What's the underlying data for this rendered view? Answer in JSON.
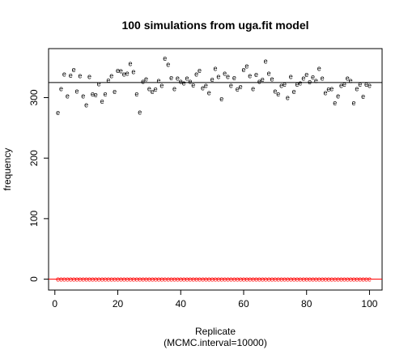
{
  "chart_data": {
    "type": "scatter",
    "title": "100 simulations from uga.fit model",
    "xlabel": "Replicate",
    "xlabel_sub": "(MCMC.interval=10000)",
    "ylabel": "frequency",
    "xlim": [
      -2,
      104
    ],
    "ylim": [
      -18,
      381
    ],
    "x_ticks": [
      0,
      20,
      40,
      60,
      80,
      100
    ],
    "y_ticks": [
      0,
      100,
      200,
      300
    ],
    "point_marker": "e",
    "reference_line": {
      "y": 325,
      "color": "#000000"
    },
    "baseline": {
      "y": 0,
      "color": "#ff0000",
      "marker": "e"
    },
    "colors": {
      "points": "#000000",
      "baseline": "#ff0000"
    },
    "series": [
      {
        "values": [
          275,
          315,
          339,
          303,
          337,
          346,
          311,
          336,
          303,
          288,
          335,
          306,
          305,
          323,
          294,
          306,
          329,
          336,
          310,
          345,
          344,
          339,
          340,
          356,
          343,
          306,
          276,
          327,
          331,
          315,
          310,
          314,
          328,
          320,
          365,
          355,
          333,
          315,
          332,
          327,
          324,
          332,
          327,
          321,
          339,
          345,
          316,
          320,
          308,
          330,
          348,
          335,
          298,
          340,
          335,
          320,
          333,
          314,
          318,
          346,
          352,
          336,
          315,
          338,
          327,
          330,
          360,
          340,
          331,
          311,
          306,
          320,
          322,
          300,
          335,
          310,
          322,
          324,
          332,
          338,
          326,
          334,
          328,
          348,
          332,
          308,
          314,
          315,
          291,
          303,
          320,
          322,
          332,
          328,
          291,
          315,
          322,
          302,
          322,
          320
        ]
      },
      {
        "values": [
          0,
          0,
          0,
          0,
          0,
          0,
          0,
          0,
          0,
          0,
          0,
          0,
          0,
          0,
          0,
          0,
          0,
          0,
          0,
          0,
          0,
          0,
          0,
          0,
          0,
          0,
          0,
          0,
          0,
          0,
          0,
          0,
          0,
          0,
          0,
          0,
          0,
          0,
          0,
          0,
          0,
          0,
          0,
          0,
          0,
          0,
          0,
          0,
          0,
          0,
          0,
          0,
          0,
          0,
          0,
          0,
          0,
          0,
          0,
          0,
          0,
          0,
          0,
          0,
          0,
          0,
          0,
          0,
          0,
          0,
          0,
          0,
          0,
          0,
          0,
          0,
          0,
          0,
          0,
          0,
          0,
          0,
          0,
          0,
          0,
          0,
          0,
          0,
          0,
          0,
          0,
          0,
          0,
          0,
          0,
          0,
          0,
          0,
          0,
          0
        ]
      }
    ]
  }
}
